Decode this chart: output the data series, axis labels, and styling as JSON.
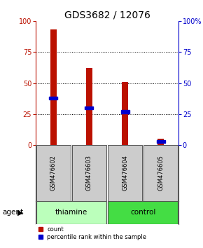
{
  "title": "GDS3682 / 12076",
  "samples": [
    "GSM476602",
    "GSM476603",
    "GSM476604",
    "GSM476605"
  ],
  "count_values": [
    93,
    62,
    51,
    5
  ],
  "percentile_values": [
    38,
    30,
    27,
    3
  ],
  "groups": [
    {
      "label": "thiamine",
      "indices": [
        0,
        1
      ],
      "color": "#bbffbb"
    },
    {
      "label": "control",
      "indices": [
        2,
        3
      ],
      "color": "#44dd44"
    }
  ],
  "group_label": "agent",
  "bar_color": "#bb1100",
  "percentile_color": "#0000cc",
  "ylim": [
    0,
    100
  ],
  "yticks": [
    0,
    25,
    50,
    75,
    100
  ],
  "bar_width": 0.18,
  "title_fontsize": 10,
  "tick_fontsize": 7,
  "sample_box_color": "#cccccc",
  "sample_box_edge": "#555555",
  "legend_red_label": "count",
  "legend_blue_label": "percentile rank within the sample",
  "background_color": "#ffffff"
}
